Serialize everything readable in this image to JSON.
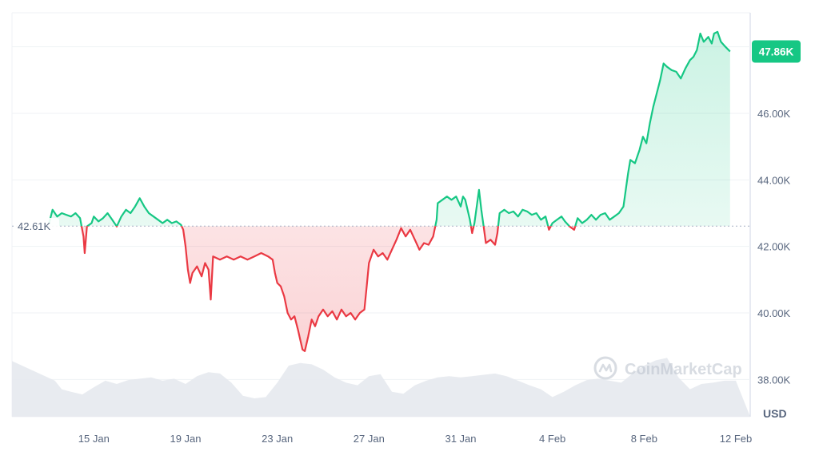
{
  "chart_data": {
    "type": "line",
    "currency_label": "USD",
    "baseline_label": "42.61K",
    "current_label": "47.86K",
    "watermark": "CoinMarketCap",
    "baseline": 42610,
    "ylim": [
      37000,
      49000
    ],
    "y_ticks": [
      {
        "value": 38000,
        "label": "38.00K"
      },
      {
        "value": 40000,
        "label": "40.00K"
      },
      {
        "value": 42000,
        "label": "42.00K"
      },
      {
        "value": 44000,
        "label": "44.00K"
      },
      {
        "value": 46000,
        "label": "46.00K"
      }
    ],
    "xlim": [
      13.0,
      43.0
    ],
    "x_ticks": [
      {
        "value": 15,
        "label": "15 Jan"
      },
      {
        "value": 19,
        "label": "19 Jan"
      },
      {
        "value": 23,
        "label": "23 Jan"
      },
      {
        "value": 27,
        "label": "27 Jan"
      },
      {
        "value": 31,
        "label": "31 Jan"
      },
      {
        "value": 35,
        "label": "4 Feb"
      },
      {
        "value": 39,
        "label": "8 Feb"
      },
      {
        "value": 43,
        "label": "12 Feb"
      }
    ],
    "colors": {
      "up": "#16c784",
      "down": "#ea3943",
      "grid": "#eff2f5",
      "volume": "#e6e9ee",
      "label_bg": "#16c784"
    },
    "series": [
      {
        "points": [
          [
            13.05,
            42700
          ],
          [
            13.2,
            43100
          ],
          [
            13.4,
            42900
          ],
          [
            13.6,
            43000
          ],
          [
            13.8,
            42950
          ],
          [
            14.0,
            42900
          ],
          [
            14.2,
            43000
          ],
          [
            14.4,
            42850
          ],
          [
            14.55,
            42300
          ],
          [
            14.6,
            41800
          ],
          [
            14.7,
            42600
          ],
          [
            14.9,
            42700
          ],
          [
            15.0,
            42900
          ],
          [
            15.2,
            42750
          ],
          [
            15.4,
            42850
          ],
          [
            15.6,
            43000
          ],
          [
            15.8,
            42800
          ],
          [
            16.0,
            42600
          ],
          [
            16.2,
            42900
          ],
          [
            16.4,
            43100
          ],
          [
            16.6,
            43000
          ],
          [
            16.8,
            43200
          ],
          [
            17.0,
            43450
          ],
          [
            17.2,
            43200
          ],
          [
            17.4,
            43000
          ],
          [
            17.6,
            42900
          ],
          [
            17.8,
            42800
          ],
          [
            18.0,
            42700
          ],
          [
            18.2,
            42800
          ],
          [
            18.4,
            42700
          ],
          [
            18.6,
            42750
          ],
          [
            18.8,
            42650
          ],
          [
            18.9,
            42500
          ],
          [
            19.0,
            42000
          ],
          [
            19.1,
            41300
          ],
          [
            19.2,
            40900
          ],
          [
            19.3,
            41200
          ],
          [
            19.5,
            41400
          ],
          [
            19.7,
            41100
          ],
          [
            19.85,
            41500
          ],
          [
            20.0,
            41300
          ],
          [
            20.1,
            40400
          ],
          [
            20.2,
            41700
          ],
          [
            20.5,
            41600
          ],
          [
            20.8,
            41700
          ],
          [
            21.1,
            41600
          ],
          [
            21.4,
            41700
          ],
          [
            21.7,
            41600
          ],
          [
            22.0,
            41700
          ],
          [
            22.3,
            41800
          ],
          [
            22.6,
            41700
          ],
          [
            22.8,
            41600
          ],
          [
            22.9,
            41200
          ],
          [
            23.0,
            40900
          ],
          [
            23.15,
            40800
          ],
          [
            23.3,
            40500
          ],
          [
            23.45,
            40000
          ],
          [
            23.6,
            39800
          ],
          [
            23.75,
            39900
          ],
          [
            23.9,
            39500
          ],
          [
            24.0,
            39200
          ],
          [
            24.1,
            38900
          ],
          [
            24.2,
            38850
          ],
          [
            24.35,
            39300
          ],
          [
            24.5,
            39800
          ],
          [
            24.65,
            39600
          ],
          [
            24.8,
            39900
          ],
          [
            25.0,
            40100
          ],
          [
            25.2,
            39900
          ],
          [
            25.4,
            40050
          ],
          [
            25.6,
            39800
          ],
          [
            25.8,
            40100
          ],
          [
            26.0,
            39900
          ],
          [
            26.2,
            40000
          ],
          [
            26.4,
            39800
          ],
          [
            26.6,
            40000
          ],
          [
            26.8,
            40100
          ],
          [
            26.9,
            40800
          ],
          [
            27.0,
            41500
          ],
          [
            27.2,
            41900
          ],
          [
            27.4,
            41700
          ],
          [
            27.6,
            41800
          ],
          [
            27.8,
            41600
          ],
          [
            28.0,
            41900
          ],
          [
            28.2,
            42200
          ],
          [
            28.4,
            42550
          ],
          [
            28.6,
            42300
          ],
          [
            28.8,
            42500
          ],
          [
            29.0,
            42200
          ],
          [
            29.2,
            41900
          ],
          [
            29.4,
            42100
          ],
          [
            29.6,
            42050
          ],
          [
            29.8,
            42300
          ],
          [
            29.95,
            42800
          ],
          [
            30.0,
            43300
          ],
          [
            30.2,
            43400
          ],
          [
            30.4,
            43500
          ],
          [
            30.6,
            43400
          ],
          [
            30.8,
            43500
          ],
          [
            31.0,
            43200
          ],
          [
            31.1,
            43500
          ],
          [
            31.2,
            43400
          ],
          [
            31.4,
            42800
          ],
          [
            31.5,
            42400
          ],
          [
            31.6,
            42700
          ],
          [
            31.8,
            43700
          ],
          [
            31.9,
            43100
          ],
          [
            32.0,
            42600
          ],
          [
            32.1,
            42100
          ],
          [
            32.3,
            42200
          ],
          [
            32.5,
            42050
          ],
          [
            32.6,
            42400
          ],
          [
            32.7,
            43000
          ],
          [
            32.9,
            43100
          ],
          [
            33.1,
            43000
          ],
          [
            33.3,
            43050
          ],
          [
            33.5,
            42900
          ],
          [
            33.7,
            43100
          ],
          [
            33.9,
            43050
          ],
          [
            34.1,
            42950
          ],
          [
            34.3,
            43000
          ],
          [
            34.5,
            42800
          ],
          [
            34.7,
            42900
          ],
          [
            34.85,
            42500
          ],
          [
            35.0,
            42700
          ],
          [
            35.2,
            42800
          ],
          [
            35.4,
            42900
          ],
          [
            35.55,
            42750
          ],
          [
            35.75,
            42600
          ],
          [
            35.95,
            42500
          ],
          [
            36.1,
            42850
          ],
          [
            36.3,
            42700
          ],
          [
            36.5,
            42800
          ],
          [
            36.7,
            42950
          ],
          [
            36.9,
            42800
          ],
          [
            37.1,
            42950
          ],
          [
            37.3,
            43000
          ],
          [
            37.5,
            42800
          ],
          [
            37.7,
            42900
          ],
          [
            37.9,
            43000
          ],
          [
            38.1,
            43200
          ],
          [
            38.2,
            43700
          ],
          [
            38.3,
            44200
          ],
          [
            38.4,
            44600
          ],
          [
            38.6,
            44500
          ],
          [
            38.8,
            44900
          ],
          [
            38.95,
            45300
          ],
          [
            39.1,
            45100
          ],
          [
            39.25,
            45700
          ],
          [
            39.4,
            46200
          ],
          [
            39.55,
            46600
          ],
          [
            39.7,
            47000
          ],
          [
            39.85,
            47500
          ],
          [
            40.0,
            47400
          ],
          [
            40.2,
            47300
          ],
          [
            40.4,
            47250
          ],
          [
            40.6,
            47050
          ],
          [
            40.8,
            47350
          ],
          [
            41.0,
            47600
          ],
          [
            41.15,
            47700
          ],
          [
            41.3,
            47900
          ],
          [
            41.45,
            48400
          ],
          [
            41.6,
            48150
          ],
          [
            41.8,
            48300
          ],
          [
            41.95,
            48100
          ],
          [
            42.05,
            48400
          ],
          [
            42.2,
            48450
          ],
          [
            42.35,
            48150
          ],
          [
            42.55,
            48000
          ],
          [
            42.75,
            47860
          ]
        ]
      }
    ],
    "volume": [
      [
        13.0,
        0.85
      ],
      [
        13.3,
        0.55
      ],
      [
        13.6,
        0.42
      ],
      [
        14.0,
        0.38
      ],
      [
        14.5,
        0.34
      ],
      [
        15.0,
        0.45
      ],
      [
        15.5,
        0.55
      ],
      [
        16.0,
        0.5
      ],
      [
        16.5,
        0.56
      ],
      [
        17.0,
        0.58
      ],
      [
        17.5,
        0.6
      ],
      [
        18.0,
        0.55
      ],
      [
        18.5,
        0.58
      ],
      [
        19.0,
        0.5
      ],
      [
        19.5,
        0.62
      ],
      [
        20.0,
        0.68
      ],
      [
        20.5,
        0.66
      ],
      [
        21.0,
        0.52
      ],
      [
        21.5,
        0.32
      ],
      [
        22.0,
        0.28
      ],
      [
        22.5,
        0.3
      ],
      [
        23.0,
        0.52
      ],
      [
        23.5,
        0.78
      ],
      [
        24.0,
        0.82
      ],
      [
        24.5,
        0.8
      ],
      [
        25.0,
        0.72
      ],
      [
        25.5,
        0.6
      ],
      [
        26.0,
        0.52
      ],
      [
        26.5,
        0.48
      ],
      [
        27.0,
        0.62
      ],
      [
        27.5,
        0.65
      ],
      [
        28.0,
        0.38
      ],
      [
        28.5,
        0.35
      ],
      [
        29.0,
        0.48
      ],
      [
        29.5,
        0.55
      ],
      [
        30.0,
        0.6
      ],
      [
        30.5,
        0.62
      ],
      [
        31.0,
        0.6
      ],
      [
        31.5,
        0.62
      ],
      [
        32.0,
        0.64
      ],
      [
        32.5,
        0.66
      ],
      [
        33.0,
        0.62
      ],
      [
        33.5,
        0.55
      ],
      [
        34.0,
        0.48
      ],
      [
        34.5,
        0.42
      ],
      [
        35.0,
        0.3
      ],
      [
        35.5,
        0.38
      ],
      [
        36.0,
        0.48
      ],
      [
        36.5,
        0.56
      ],
      [
        37.0,
        0.58
      ],
      [
        37.5,
        0.55
      ],
      [
        38.0,
        0.52
      ],
      [
        38.5,
        0.66
      ],
      [
        39.0,
        0.78
      ],
      [
        39.5,
        0.86
      ],
      [
        40.0,
        0.9
      ],
      [
        40.5,
        0.6
      ],
      [
        41.0,
        0.42
      ],
      [
        41.5,
        0.5
      ],
      [
        42.0,
        0.52
      ],
      [
        42.5,
        0.55
      ],
      [
        43.0,
        0.55
      ]
    ]
  }
}
